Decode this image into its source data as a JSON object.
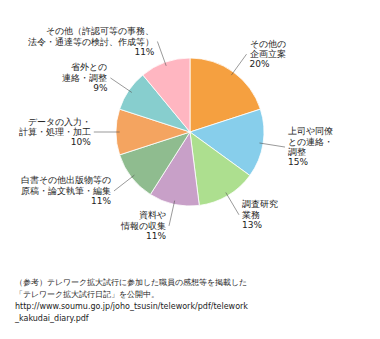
{
  "chart_data": {
    "type": "pie",
    "categories": [
      "その他の\n企画立案",
      "上司や同僚\nとの連絡・\n調整",
      "調査研究\n業務",
      "資料や\n情報の収集",
      "白書その他出版物等の\n原稿・論文執筆・編集",
      "データの入力・\n計算・処理・加工",
      "省外との\n連絡・調整",
      "その他（許認可等の事務、\n法令・通達等の検討、作成等）"
    ],
    "values": [
      20,
      15,
      13,
      11,
      11,
      10,
      9,
      11
    ],
    "value_labels": [
      "20%",
      "15%",
      "13%",
      "11%",
      "11%",
      "10%",
      "9%",
      "11%"
    ],
    "colors": [
      "#F5A040",
      "#87CEEB",
      "#ADDF8F",
      "#C8A0C8",
      "#8FBC8F",
      "#F4A460",
      "#87CECE",
      "#FFB6C1"
    ],
    "data_labels": true,
    "annotations": [
      "（参考）テレワーク拡大試行に参加した職員の感想等を掲載した",
      "「テレワーク拡大試行日記」を公開中。",
      "http://www.soumu.go.jp/joho_tsusin/telework/pdf/telework",
      "_kakudai_diary.pdf"
    ]
  }
}
